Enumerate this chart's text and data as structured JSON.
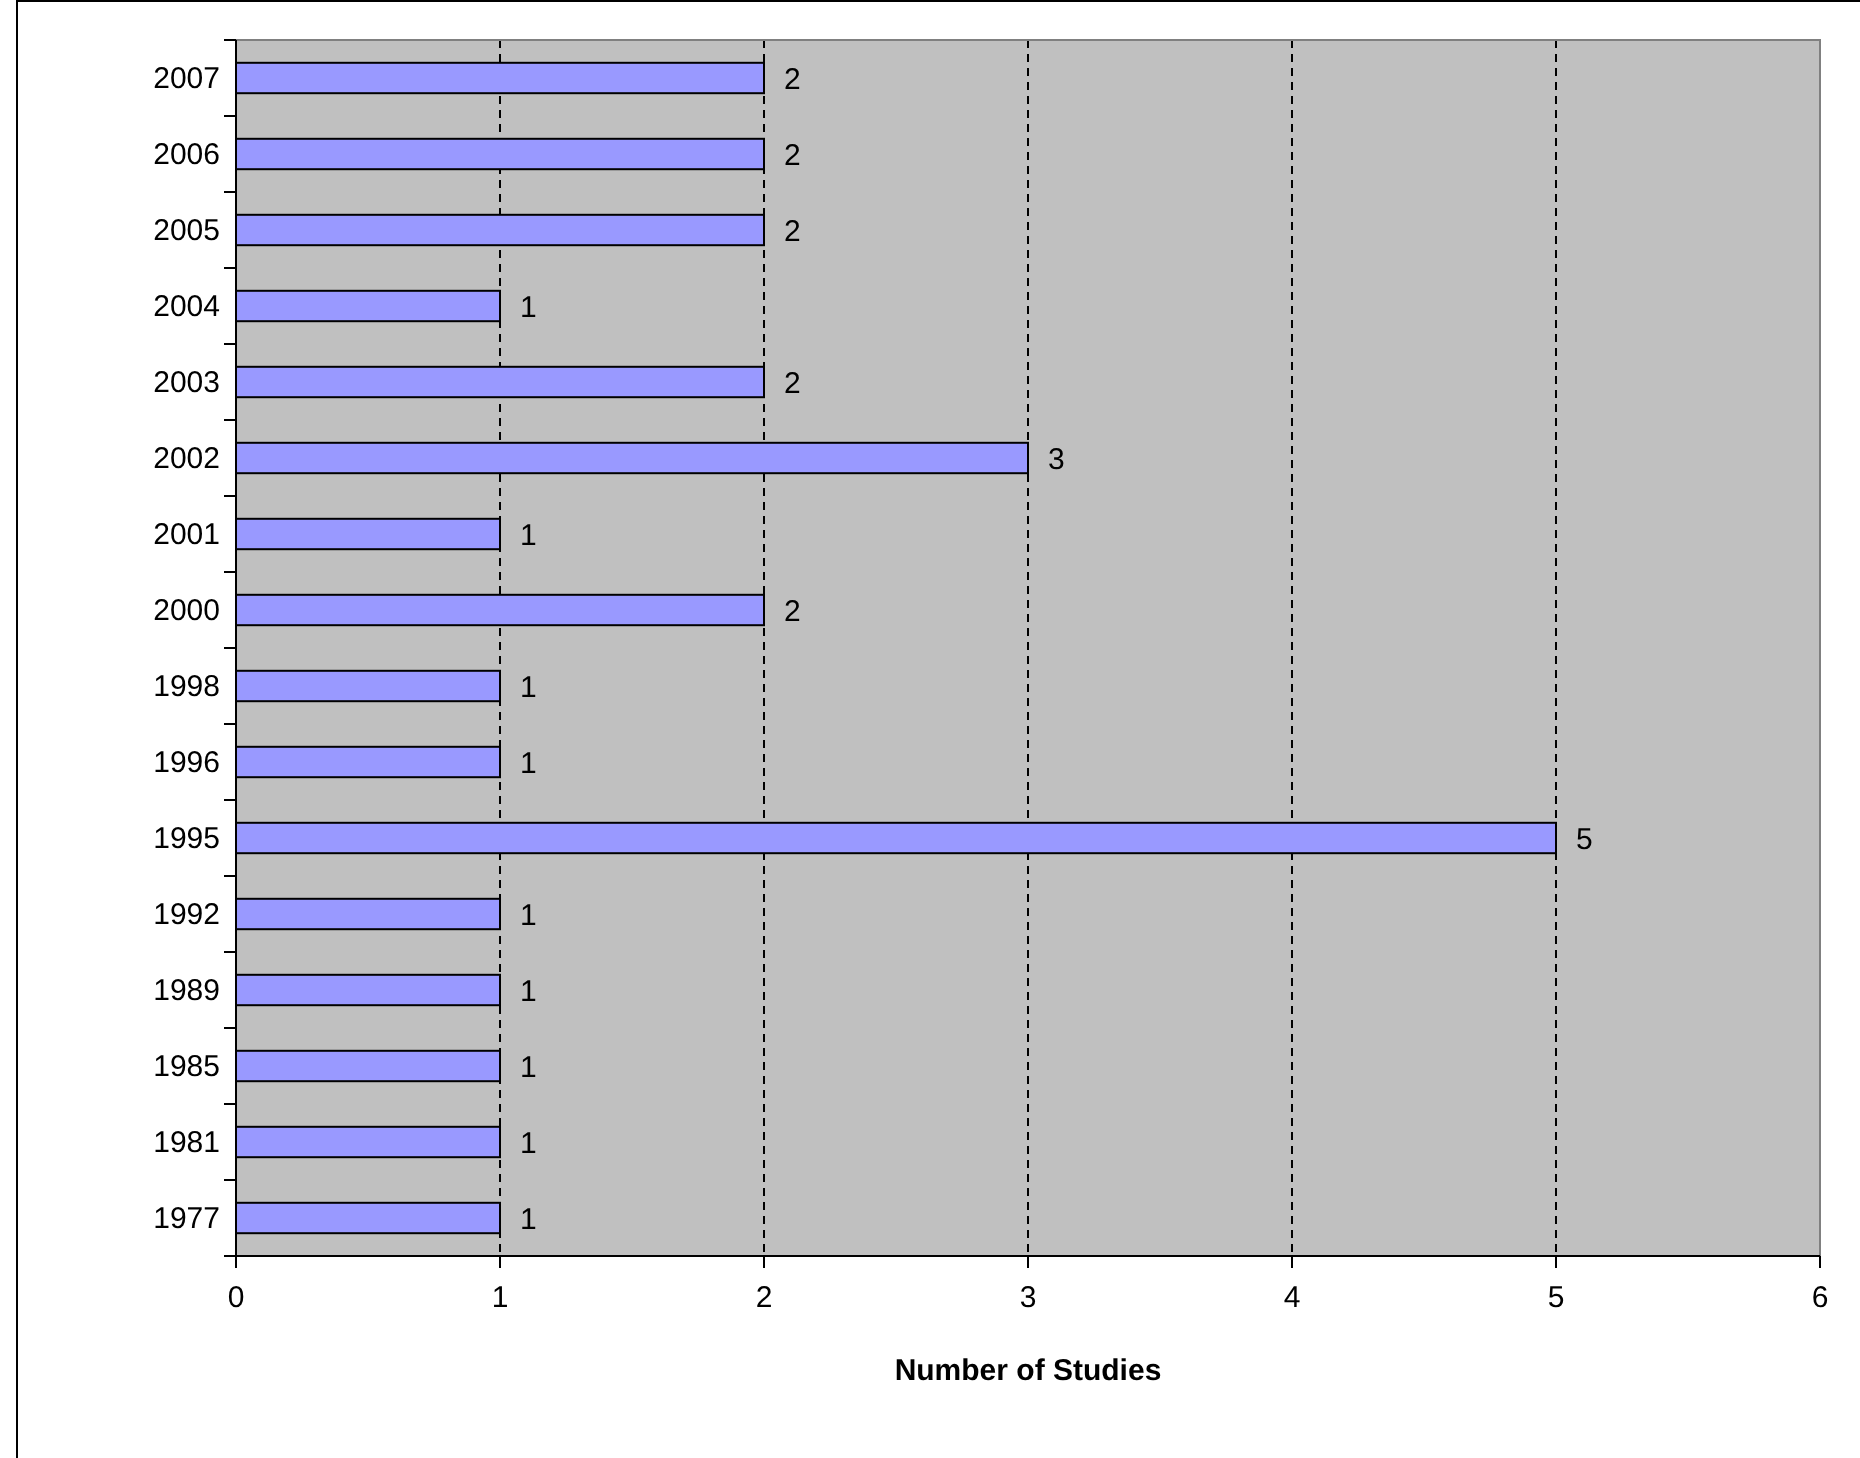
{
  "chart_data": {
    "type": "bar",
    "orientation": "horizontal",
    "xlabel": "Number of Studies",
    "categories": [
      "2007",
      "2006",
      "2005",
      "2004",
      "2003",
      "2002",
      "2001",
      "2000",
      "1998",
      "1996",
      "1995",
      "1992",
      "1989",
      "1985",
      "1981",
      "1977"
    ],
    "values": [
      2,
      2,
      2,
      1,
      2,
      3,
      1,
      2,
      1,
      1,
      5,
      1,
      1,
      1,
      1,
      1
    ],
    "color": "#9999ff",
    "xlim": [
      0,
      6
    ],
    "xticks": [
      0,
      1,
      2,
      3,
      4,
      5,
      6
    ],
    "grid": "x",
    "data_labels": true
  }
}
